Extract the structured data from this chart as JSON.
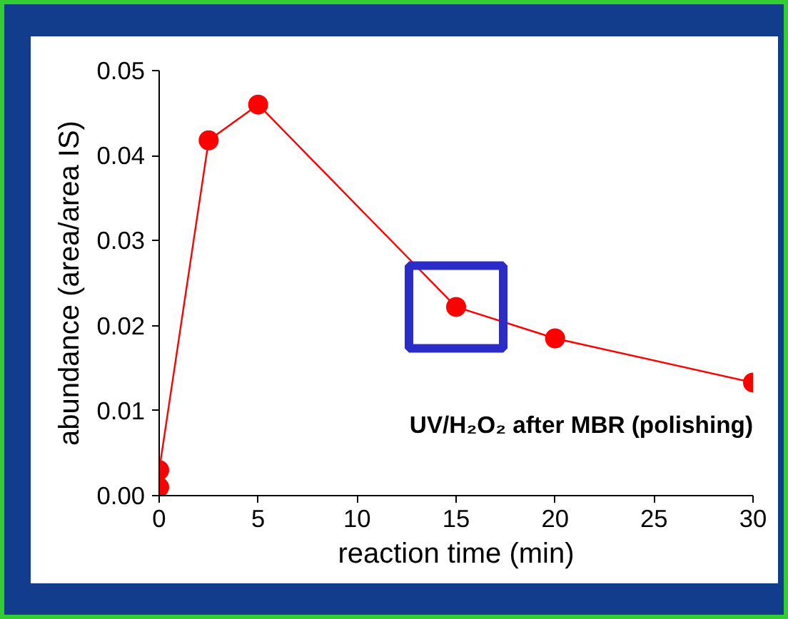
{
  "chart_data": {
    "type": "line",
    "x": [
      0,
      0,
      2.5,
      5,
      15,
      20,
      30
    ],
    "values": [
      0.001,
      0.003,
      0.0418,
      0.046,
      0.0222,
      0.0185,
      0.0133
    ],
    "color": "#ff0000",
    "marker": "circle",
    "line_style": "solid",
    "grid": false,
    "xlabel": "reaction time (min)",
    "ylabel": "abundance (area/area IS)",
    "xlim": [
      0,
      30
    ],
    "xticks": [
      0,
      5,
      10,
      15,
      20,
      25,
      30
    ],
    "ylim": [
      0,
      0.05
    ],
    "yticks": [
      {
        "value": 0,
        "label": "0.00"
      },
      {
        "value": 0.01,
        "label": "0.01"
      },
      {
        "value": 0.02,
        "label": "0.02"
      },
      {
        "value": 0.03,
        "label": "0.03"
      },
      {
        "value": 0.04,
        "label": "0.04"
      },
      {
        "value": 0.05,
        "label": "0.05"
      }
    ],
    "annotations": [
      "UV/H₂O₂ after MBR (polishing)"
    ]
  }
}
